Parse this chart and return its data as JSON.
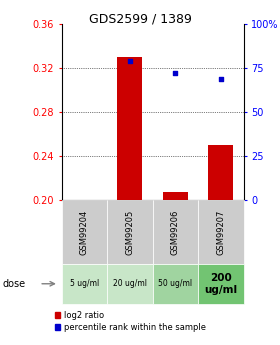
{
  "title": "GDS2599 / 1389",
  "samples": [
    "GSM99204",
    "GSM99205",
    "GSM99206",
    "GSM99207"
  ],
  "doses": [
    "5 ug/ml",
    "20 ug/ml",
    "50 ug/ml",
    "200\nug/ml"
  ],
  "log2_ratio": [
    null,
    0.33,
    0.207,
    0.25
  ],
  "percentile_rank": [
    null,
    79,
    72,
    69
  ],
  "ylim_left": [
    0.2,
    0.36
  ],
  "ylim_right": [
    0,
    100
  ],
  "yticks_left": [
    0.2,
    0.24,
    0.28,
    0.32,
    0.36
  ],
  "yticks_right": [
    0,
    25,
    50,
    75,
    100
  ],
  "bar_color": "#cc0000",
  "dot_color": "#0000cc",
  "bar_width": 0.55,
  "dose_bg_colors": [
    "#c8e6c8",
    "#c8e6c8",
    "#a0d4a0",
    "#72c472"
  ],
  "sample_bg_color": "#cccccc",
  "grid_color": "#cccccc",
  "bg_color": "#ffffff",
  "legend_bar_label": "log2 ratio",
  "legend_dot_label": "percentile rank within the sample",
  "title_fontsize": 9,
  "tick_fontsize": 7,
  "sample_fontsize": 6,
  "dose_fontsize_small": 5.5,
  "dose_fontsize_large": 7.5,
  "legend_fontsize": 6
}
